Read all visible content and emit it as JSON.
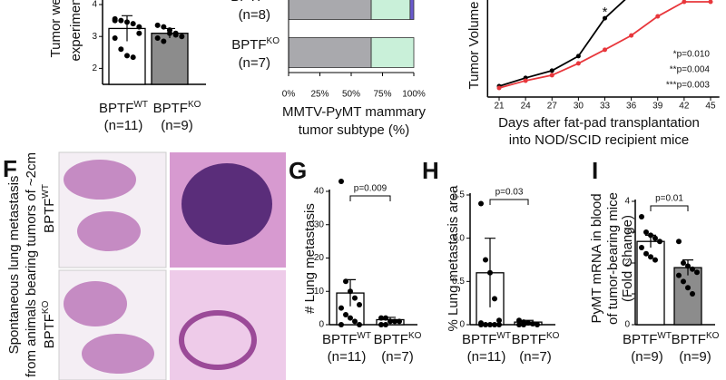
{
  "chart_data": [
    {
      "type": "dotbar",
      "ylabel_lines": [
        "Tumor weight at",
        "experimental end"
      ],
      "groups": [
        {
          "name": "BPTF",
          "superscript": "WT",
          "n": "(n=11)"
        },
        {
          "name": "BPTF",
          "superscript": "KO",
          "n": "(n=9)"
        }
      ],
      "values": [
        3.25,
        3.1
      ],
      "errors": [
        0.4,
        0.15
      ],
      "bar_colors": [
        "#ffffff",
        "#8c8c8c"
      ],
      "points": [
        [
          3.55,
          3.5,
          3.45,
          3.4,
          3.1,
          2.95,
          2.6,
          2.4,
          2.35,
          3.3,
          3.5
        ],
        [
          3.35,
          3.3,
          3.2,
          3.1,
          3.0,
          2.95,
          2.85,
          3.1,
          3.05
        ]
      ],
      "ylim": [
        1.5,
        4.1
      ],
      "yticks": [
        2,
        3,
        4
      ]
    },
    {
      "type": "hbar_stacked",
      "xlabel_lines": [
        "MMTV-PyMT mammary",
        "tumor subtype (%)"
      ],
      "groups": [
        {
          "name": "BPTF",
          "superscript": "WT",
          "n": "(n=8)"
        },
        {
          "name": "BPTF",
          "superscript": "KO",
          "n": "(n=7)"
        }
      ],
      "series": [
        {
          "color": "#a9a9ad",
          "values": [
            66,
            66
          ]
        },
        {
          "color": "#c9f0d9",
          "values": [
            31,
            34
          ]
        },
        {
          "color": "#6a5acd",
          "values": [
            3,
            0
          ]
        }
      ],
      "xlim": [
        0,
        100
      ],
      "xticks": [
        {
          "value": 0,
          "label": "0%"
        },
        {
          "value": 25,
          "label": "25%"
        },
        {
          "value": 50,
          "label": "50%"
        },
        {
          "value": 75,
          "label": "75%"
        },
        {
          "value": 100,
          "label": "100%"
        }
      ]
    },
    {
      "type": "line",
      "ylabel": "Tumor Volume",
      "xlabel_lines": [
        "Days after fat-pad transplantation",
        "into NOD/SCID recipient mice"
      ],
      "x": [
        21,
        24,
        27,
        30,
        33,
        36,
        39,
        42,
        45
      ],
      "series": [
        {
          "color": "#000000",
          "values": [
            180,
            315,
            435,
            675,
            1300,
            1700,
            null,
            null,
            null
          ]
        },
        {
          "color": "#e8373c",
          "values": [
            150,
            270,
            360,
            555,
            780,
            1015,
            1330,
            1570,
            1570
          ]
        }
      ],
      "xlim": [
        20,
        46
      ],
      "xticks": [
        21,
        24,
        27,
        30,
        33,
        36,
        39,
        42,
        45
      ],
      "ylim": [
        0,
        1600
      ],
      "star": "*",
      "annotations": [
        "*p=0.010",
        "**p=0.004",
        "***p=0.003"
      ]
    },
    {
      "type": "dotbar",
      "panel": "G",
      "ylabel_lines": [
        "# Lung metastasis"
      ],
      "pvalue": "p=0.009",
      "groups": [
        {
          "name": "BPTF",
          "superscript": "WT",
          "n": "(n=11)"
        },
        {
          "name": "BPTF",
          "superscript": "KO",
          "n": "(n=7)"
        }
      ],
      "values": [
        9.5,
        1.5
      ],
      "errors": [
        4,
        0.7
      ],
      "bar_colors": [
        "#ffffff",
        "#ffffff"
      ],
      "points": [
        [
          43,
          13,
          10,
          8,
          6,
          5,
          3,
          2,
          1,
          0,
          0
        ],
        [
          2,
          2,
          1,
          1,
          1,
          0,
          0
        ]
      ],
      "ylim": [
        0,
        40
      ],
      "yticks": [
        0,
        10,
        20,
        30,
        40
      ]
    },
    {
      "type": "dotbar",
      "panel": "H",
      "ylabel_lines": [
        "% Lung metastasis area"
      ],
      "pvalue": "p=0.03",
      "groups": [
        {
          "name": "BPTF",
          "superscript": "WT",
          "n": "(n=11)"
        },
        {
          "name": "BPTF",
          "superscript": "KO",
          "n": "(n=7)"
        }
      ],
      "values": [
        0.6,
        0.03
      ],
      "errors": [
        0.4,
        0.02
      ],
      "bar_colors": [
        "#ffffff",
        "#ffffff"
      ],
      "points": [
        [
          1.4,
          0.75,
          0.6,
          0.3,
          0.05,
          0.02,
          0,
          0,
          0,
          0,
          0
        ],
        [
          0.05,
          0.03,
          0.02,
          0.01,
          0,
          0,
          0
        ]
      ],
      "ylim": [
        0,
        1.5
      ],
      "yticks": [
        0,
        {
          "value": 0.5,
          "label": "0.5"
        },
        {
          "value": 1,
          "label": "1.0"
        },
        {
          "value": 1.5,
          "label": "1.5"
        }
      ]
    },
    {
      "type": "dotbar",
      "panel": "I",
      "ylabel_lines": [
        "PyMT mRNA in blood",
        "of tumor-bearing mice",
        "(Fold Change)"
      ],
      "pvalue": "p=0.01",
      "groups": [
        {
          "name": "BPTF",
          "superscript": "WT",
          "n": "(n=9)"
        },
        {
          "name": "BPTF",
          "superscript": "KO",
          "n": "(n=9)"
        }
      ],
      "values": [
        2.7,
        1.85
      ],
      "errors": [
        0.2,
        0.25
      ],
      "bar_colors": [
        "#ffffff",
        "#8c8c8c"
      ],
      "points": [
        [
          3.5,
          3.0,
          2.9,
          2.8,
          2.7,
          2.5,
          2.3,
          2.2,
          2.1
        ],
        [
          2.7,
          2.0,
          1.9,
          1.8,
          1.7,
          1.6,
          1.4,
          1.2,
          1.0
        ]
      ],
      "ylim": [
        0,
        4
      ],
      "yticks": [
        0,
        1,
        2,
        3,
        4
      ]
    }
  ],
  "panel_f": {
    "letter": "F",
    "title_lines": [
      "Spontaneous lung metastasis",
      "from animals bearing tumors of ~2cm"
    ],
    "rows": [
      {
        "name": "BPTF",
        "superscript": "WT"
      },
      {
        "name": "BPTF",
        "superscript": "KO"
      }
    ]
  }
}
